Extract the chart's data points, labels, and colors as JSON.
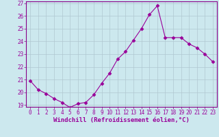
{
  "x": [
    0,
    1,
    2,
    3,
    4,
    5,
    6,
    7,
    8,
    9,
    10,
    11,
    12,
    13,
    14,
    15,
    16,
    17,
    18,
    19,
    20,
    21,
    22,
    23
  ],
  "y": [
    20.9,
    20.2,
    19.9,
    19.5,
    19.2,
    18.8,
    19.1,
    19.2,
    19.8,
    20.7,
    21.5,
    22.6,
    23.2,
    24.1,
    25.0,
    26.1,
    26.8,
    24.3,
    24.3,
    24.3,
    23.8,
    23.5,
    23.0,
    22.4
  ],
  "line_color": "#990099",
  "marker": "D",
  "markersize": 2.5,
  "linewidth": 0.8,
  "xlabel": "Windchill (Refroidissement éolien,°C)",
  "xlabel_fontsize": 6.5,
  "ylim_min": 19,
  "ylim_max": 27,
  "yticks": [
    19,
    20,
    21,
    22,
    23,
    24,
    25,
    26,
    27
  ],
  "xticks": [
    0,
    1,
    2,
    3,
    4,
    5,
    6,
    7,
    8,
    9,
    10,
    11,
    12,
    13,
    14,
    15,
    16,
    17,
    18,
    19,
    20,
    21,
    22,
    23
  ],
  "grid_color": "#b0c8d0",
  "bg_color": "#cce8ee",
  "tick_fontsize": 5.5,
  "spine_color": "#880088"
}
